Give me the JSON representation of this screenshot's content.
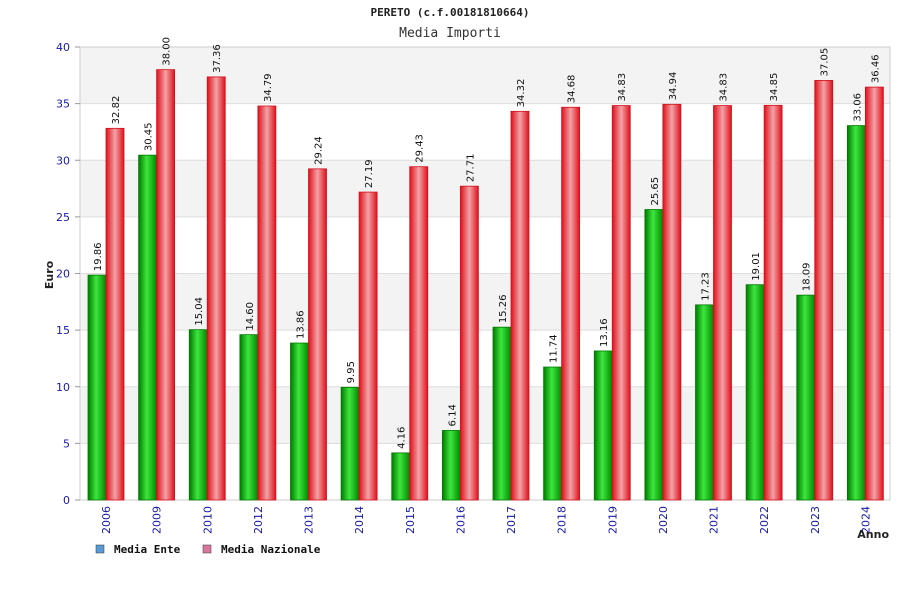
{
  "chart_data": {
    "type": "bar",
    "title": "PERETO (c.f.00181810664)",
    "subtitle": "Media Importi",
    "xlabel": "Anno",
    "ylabel": "Euro",
    "ylim": [
      0,
      40
    ],
    "yticks": [
      0,
      5,
      10,
      15,
      20,
      25,
      30,
      35,
      40
    ],
    "grid": true,
    "legend_position": "bottom-left",
    "categories": [
      "2006",
      "2009",
      "2010",
      "2012",
      "2013",
      "2014",
      "2015",
      "2016",
      "2017",
      "2018",
      "2019",
      "2020",
      "2021",
      "2022",
      "2023",
      "2024"
    ],
    "series": [
      {
        "name": "Media Ente",
        "color": "#00b000",
        "legend_color": "#5b9bd5",
        "values": [
          19.86,
          30.45,
          15.04,
          14.6,
          13.86,
          9.95,
          4.16,
          6.14,
          15.26,
          11.74,
          13.16,
          25.65,
          17.23,
          19.01,
          18.09,
          33.06
        ],
        "labels": [
          "19.86",
          "30.45",
          "15.04",
          "14.60",
          "13.86",
          "9.95",
          "4.16",
          "6.14",
          "15.26",
          "11.74",
          "13.16",
          "25.65",
          "17.23",
          "19.01",
          "18.09",
          "33.06"
        ]
      },
      {
        "name": "Media Nazionale",
        "color": "#e8161f",
        "legend_color": "#d9779b",
        "values": [
          32.82,
          38.0,
          37.36,
          34.79,
          29.24,
          27.19,
          29.43,
          27.71,
          34.32,
          34.68,
          34.83,
          34.94,
          34.83,
          34.85,
          37.05,
          36.46
        ],
        "labels": [
          "32.82",
          "38.00",
          "37.36",
          "34.79",
          "29.24",
          "27.19",
          "29.43",
          "27.71",
          "34.32",
          "34.68",
          "34.83",
          "34.94",
          "34.83",
          "34.85",
          "37.05",
          "36.46"
        ]
      }
    ]
  }
}
